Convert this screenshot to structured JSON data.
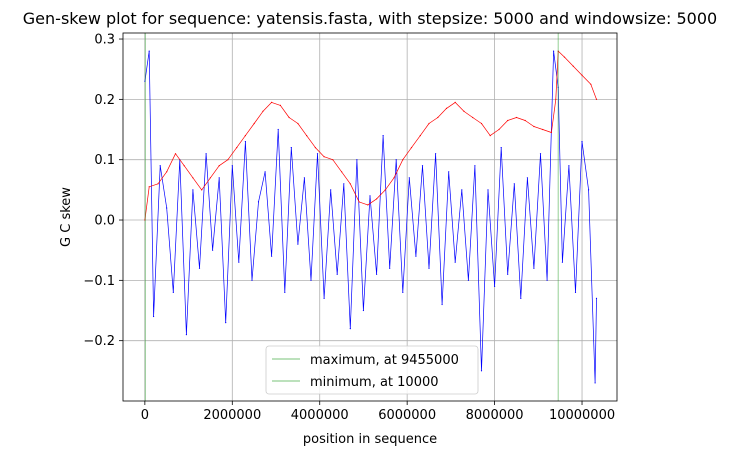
{
  "chart_data": {
    "type": "line",
    "title": "Gen-skew plot for sequence: yatensis.fasta, with stepsize: 5000 and windowsize: 5000",
    "xlabel": "position in sequence",
    "ylabel": "G C skew",
    "xlim": [
      -500000,
      10800000
    ],
    "ylim": [
      -0.3,
      0.31
    ],
    "x_ticks": [
      0,
      2000000,
      4000000,
      6000000,
      8000000,
      10000000
    ],
    "x_tick_labels": [
      "0",
      "2000000",
      "4000000",
      "6000000",
      "8000000",
      "10000000"
    ],
    "y_ticks": [
      -0.2,
      -0.1,
      0.0,
      0.1,
      0.2,
      0.3
    ],
    "y_tick_labels": [
      "−0.2",
      "−0.1",
      "0.0",
      "0.1",
      "0.2",
      "0.3"
    ],
    "grid": true,
    "legend_position": "bottom-center",
    "series": [
      {
        "role": "gc-skew",
        "color": "#0000ff",
        "x": [
          0,
          100000,
          200000,
          350000,
          500000,
          650000,
          800000,
          950000,
          1100000,
          1250000,
          1400000,
          1550000,
          1700000,
          1850000,
          2000000,
          2150000,
          2300000,
          2450000,
          2600000,
          2750000,
          2900000,
          3050000,
          3200000,
          3350000,
          3500000,
          3650000,
          3800000,
          3950000,
          4100000,
          4250000,
          4400000,
          4550000,
          4700000,
          4850000,
          5000000,
          5150000,
          5300000,
          5450000,
          5600000,
          5750000,
          5900000,
          6050000,
          6200000,
          6350000,
          6500000,
          6650000,
          6800000,
          6950000,
          7100000,
          7250000,
          7400000,
          7550000,
          7700000,
          7850000,
          8000000,
          8150000,
          8300000,
          8450000,
          8600000,
          8750000,
          8900000,
          9050000,
          9200000,
          9350000,
          9455000,
          9550000,
          9700000,
          9850000,
          10000000,
          10150000,
          10300000,
          10330000
        ],
        "y": [
          0.23,
          0.28,
          -0.16,
          0.09,
          0.02,
          -0.12,
          0.1,
          -0.19,
          0.05,
          -0.08,
          0.11,
          -0.05,
          0.07,
          -0.17,
          0.09,
          -0.07,
          0.13,
          -0.1,
          0.03,
          0.08,
          -0.06,
          0.15,
          -0.12,
          0.12,
          -0.04,
          0.07,
          -0.1,
          0.11,
          -0.13,
          0.05,
          -0.09,
          0.06,
          -0.18,
          0.1,
          -0.15,
          0.04,
          -0.09,
          0.14,
          -0.08,
          0.1,
          -0.12,
          0.07,
          -0.06,
          0.09,
          -0.08,
          0.11,
          -0.14,
          0.08,
          -0.07,
          0.05,
          -0.1,
          0.09,
          -0.25,
          0.05,
          -0.11,
          0.12,
          -0.09,
          0.06,
          -0.13,
          0.07,
          -0.08,
          0.11,
          -0.1,
          0.28,
          0.22,
          -0.07,
          0.09,
          -0.12,
          0.13,
          0.05,
          -0.27,
          -0.13
        ]
      },
      {
        "role": "cumulative-skew",
        "color": "#ff0000",
        "x": [
          0,
          100000,
          300000,
          500000,
          700000,
          900000,
          1100000,
          1300000,
          1500000,
          1700000,
          1900000,
          2100000,
          2300000,
          2500000,
          2700000,
          2900000,
          3100000,
          3300000,
          3500000,
          3700000,
          3900000,
          4100000,
          4300000,
          4500000,
          4700000,
          4900000,
          5100000,
          5300000,
          5500000,
          5700000,
          5900000,
          6100000,
          6300000,
          6500000,
          6700000,
          6900000,
          7100000,
          7300000,
          7500000,
          7700000,
          7900000,
          8100000,
          8300000,
          8500000,
          8700000,
          8900000,
          9100000,
          9300000,
          9400000,
          9455000,
          9600000,
          9800000,
          10000000,
          10200000,
          10330000
        ],
        "y": [
          0.0,
          0.055,
          0.06,
          0.08,
          0.11,
          0.09,
          0.07,
          0.05,
          0.07,
          0.09,
          0.1,
          0.12,
          0.14,
          0.16,
          0.18,
          0.195,
          0.19,
          0.17,
          0.16,
          0.14,
          0.12,
          0.105,
          0.1,
          0.08,
          0.06,
          0.03,
          0.025,
          0.035,
          0.05,
          0.07,
          0.1,
          0.12,
          0.14,
          0.16,
          0.17,
          0.185,
          0.195,
          0.18,
          0.17,
          0.16,
          0.14,
          0.15,
          0.165,
          0.17,
          0.165,
          0.155,
          0.15,
          0.145,
          0.2,
          0.28,
          0.27,
          0.255,
          0.24,
          0.225,
          0.2
        ]
      }
    ],
    "vertical_markers": [
      {
        "label": "maximum, at 9455000",
        "x": 9455000,
        "color": "#2ca02c"
      },
      {
        "label": "minimum, at 10000",
        "x": 10000,
        "color": "#2ca02c"
      }
    ]
  }
}
